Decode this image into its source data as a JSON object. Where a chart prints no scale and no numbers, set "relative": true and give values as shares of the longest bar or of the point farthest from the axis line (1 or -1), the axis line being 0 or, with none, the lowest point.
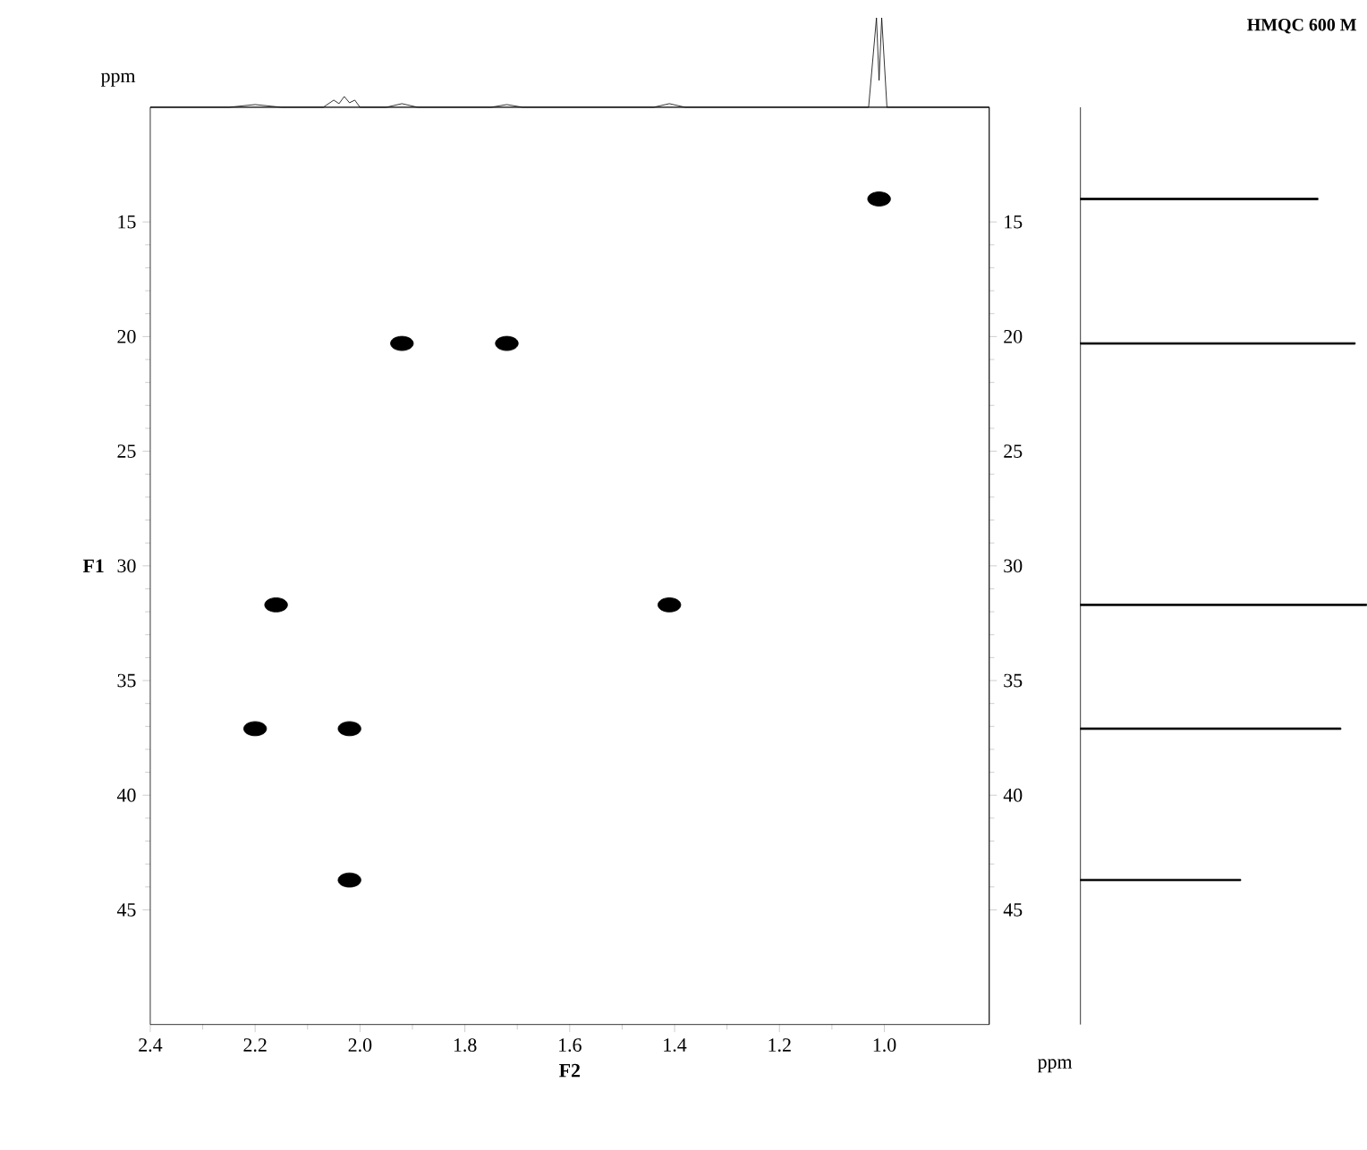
{
  "chart_data": [
    {
      "type": "line",
      "relative": true,
      "xlim": [
        2.4,
        0.8
      ],
      "tick_labels": false,
      "series": [
        {
          "color": "#000000",
          "x": [
            2.4,
            2.25,
            2.2,
            2.15,
            2.07,
            2.05,
            2.04,
            2.03,
            2.02,
            2.01,
            2.0,
            1.95,
            1.92,
            1.89,
            1.75,
            1.72,
            1.69,
            1.44,
            1.41,
            1.38,
            1.03,
            1.015,
            1.01,
            1.005,
            0.995,
            0.8
          ],
          "values": [
            0,
            0,
            0.03,
            0,
            0,
            0.08,
            0.04,
            0.12,
            0.05,
            0.08,
            0,
            0,
            0.04,
            0,
            0,
            0.03,
            0,
            0,
            0.04,
            0,
            0,
            1,
            0.3,
            1,
            0,
            0
          ]
        }
      ]
    },
    {
      "type": "scatter",
      "xlabel": "F2",
      "ylabel": "F1",
      "annotations": [
        "ppm",
        "ppm"
      ],
      "xlim": [
        2.4,
        0.8
      ],
      "ylim": [
        50,
        10
      ],
      "xticks": [
        2.4,
        2.2,
        {
          "value": 2.0,
          "label": "2.0"
        },
        1.8,
        1.6,
        1.4,
        1.2,
        {
          "value": 1.0,
          "label": "1.0"
        }
      ],
      "yticks": [
        15,
        20,
        25,
        30,
        35,
        40,
        45
      ],
      "y2lim": [
        50,
        10
      ],
      "y2ticks": [
        15,
        20,
        25,
        30,
        35,
        40,
        45
      ],
      "series": [
        {
          "color": "#000000",
          "x": [
            1.01,
            1.92,
            1.72,
            2.16,
            1.41,
            2.2,
            2.02,
            2.02
          ],
          "values": [
            14.0,
            20.3,
            20.3,
            31.7,
            31.7,
            37.1,
            37.1,
            43.7
          ]
        }
      ]
    },
    {
      "type": "bar",
      "title": "HMQC 600 M",
      "orientation": "horizontal",
      "relative": true,
      "x": [
        14.0,
        20.3,
        31.7,
        37.1,
        43.7
      ],
      "ylim": [
        50,
        10
      ],
      "tick_labels": false,
      "values": [
        0.83,
        0.96,
        1,
        0.91,
        0.56
      ],
      "color": "#000000"
    }
  ]
}
